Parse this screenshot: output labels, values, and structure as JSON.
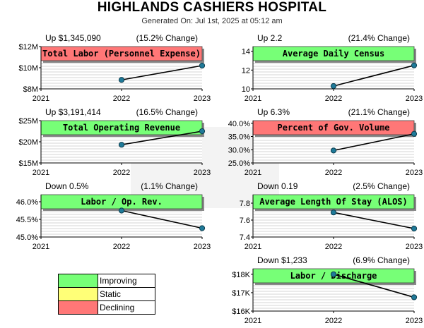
{
  "report": {
    "title": "HIGHLANDS CASHIERS HOSPITAL",
    "generated": "Generated On: Jul 1st, 2025 at 05:12 am"
  },
  "colors": {
    "improving": "#77ff77",
    "static": "#ffff77",
    "declining": "#ff7777"
  },
  "legend": [
    {
      "status": "improving",
      "label": "Improving"
    },
    {
      "status": "static",
      "label": "Static"
    },
    {
      "status": "declining",
      "label": "Declining"
    }
  ],
  "chart_data": [
    {
      "type": "line",
      "title": "Total Labor (Personnel Expense)",
      "status": "declining",
      "summary": "Up $1,345,090",
      "change": "(15.2% Change)",
      "x": [
        "2021",
        "2022",
        "2023"
      ],
      "values": [
        null,
        8.85,
        10.2
      ],
      "ylim": [
        8,
        12
      ],
      "yticks": [
        8,
        10,
        12
      ],
      "yticklabels": [
        "$8M",
        "$10M",
        "$12M"
      ]
    },
    {
      "type": "line",
      "title": "Average Daily Census",
      "status": "improving",
      "summary": "Up 2.2",
      "change": "(21.4% Change)",
      "x": [
        "2021",
        "2022",
        "2023"
      ],
      "values": [
        null,
        10.3,
        12.5
      ],
      "ylim": [
        10,
        14.5
      ],
      "yticks": [
        10,
        12,
        14
      ],
      "yticklabels": [
        "10",
        "12",
        "14"
      ]
    },
    {
      "type": "line",
      "title": "Total Operating Revenue",
      "status": "improving",
      "summary": "Up $3,191,414",
      "change": "(16.5% Change)",
      "x": [
        "2021",
        "2022",
        "2023"
      ],
      "values": [
        null,
        19.3,
        22.5
      ],
      "ylim": [
        15,
        25
      ],
      "yticks": [
        15,
        20,
        25
      ],
      "yticklabels": [
        "$15M",
        "$20M",
        "$25M"
      ]
    },
    {
      "type": "line",
      "title": "Percent of Gov. Volume",
      "status": "declining",
      "summary": "Up 6.3%",
      "change": "(21.1% Change)",
      "x": [
        "2021",
        "2022",
        "2023"
      ],
      "values": [
        null,
        29.7,
        36.0
      ],
      "ylim": [
        25,
        41
      ],
      "yticks": [
        25,
        30,
        35,
        40
      ],
      "yticklabels": [
        "25.0%",
        "30.0%",
        "35.0%",
        "40.0%"
      ]
    },
    {
      "type": "line",
      "title": "Labor / Op. Rev.",
      "status": "improving",
      "summary": "Down 0.5%",
      "change": "(1.1% Change)",
      "x": [
        "2021",
        "2022",
        "2023"
      ],
      "values": [
        null,
        45.75,
        45.25
      ],
      "ylim": [
        45,
        46.2
      ],
      "yticks": [
        45,
        45.5,
        46
      ],
      "yticklabels": [
        "45.0%",
        "45.5%",
        "46.0%"
      ]
    },
    {
      "type": "line",
      "title": "Average Length Of Stay (ALOS)",
      "status": "improving",
      "summary": "Down 0.19",
      "change": "(2.5% Change)",
      "x": [
        "2021",
        "2022",
        "2023"
      ],
      "values": [
        null,
        7.69,
        7.5
      ],
      "ylim": [
        7.4,
        7.9
      ],
      "yticks": [
        7.4,
        7.6,
        7.8
      ],
      "yticklabels": [
        "7.4",
        "7.6",
        "7.8"
      ]
    },
    {
      "type": "line",
      "title": "Labor / Discharge",
      "status": "improving",
      "summary": "Down $1,233",
      "change": "(6.9% Change)",
      "x": [
        "2021",
        "2022",
        "2023"
      ],
      "values": [
        null,
        18.0,
        16.75
      ],
      "ylim": [
        16,
        18.3
      ],
      "yticks": [
        16,
        17,
        18
      ],
      "yticklabels": [
        "$16K",
        "$17K",
        "$18K"
      ]
    }
  ]
}
